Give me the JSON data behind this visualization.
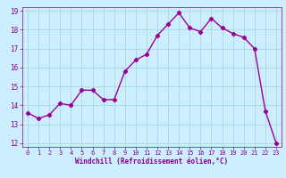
{
  "x": [
    0,
    1,
    2,
    3,
    4,
    5,
    6,
    7,
    8,
    9,
    10,
    11,
    12,
    13,
    14,
    15,
    16,
    17,
    18,
    19,
    20,
    21,
    22,
    23
  ],
  "y": [
    13.6,
    13.3,
    13.5,
    14.1,
    14.0,
    14.8,
    14.8,
    14.3,
    14.3,
    15.8,
    16.4,
    16.7,
    17.7,
    18.3,
    18.9,
    18.1,
    17.9,
    18.6,
    18.1,
    17.8,
    17.6,
    17.0,
    13.7,
    12.0
  ],
  "line_color": "#990099",
  "marker": "D",
  "marker_size": 2.2,
  "bg_color": "#cceeff",
  "grid_color": "#aadddd",
  "xlabel": "Windchill (Refroidissement éolien,°C)",
  "xlabel_color": "#880088",
  "tick_color": "#880088",
  "ylim": [
    11.8,
    19.2
  ],
  "xlim": [
    -0.5,
    23.5
  ],
  "yticks": [
    12,
    13,
    14,
    15,
    16,
    17,
    18,
    19
  ],
  "xticks": [
    0,
    1,
    2,
    3,
    4,
    5,
    6,
    7,
    8,
    9,
    10,
    11,
    12,
    13,
    14,
    15,
    16,
    17,
    18,
    19,
    20,
    21,
    22,
    23
  ],
  "linewidth": 1.0
}
